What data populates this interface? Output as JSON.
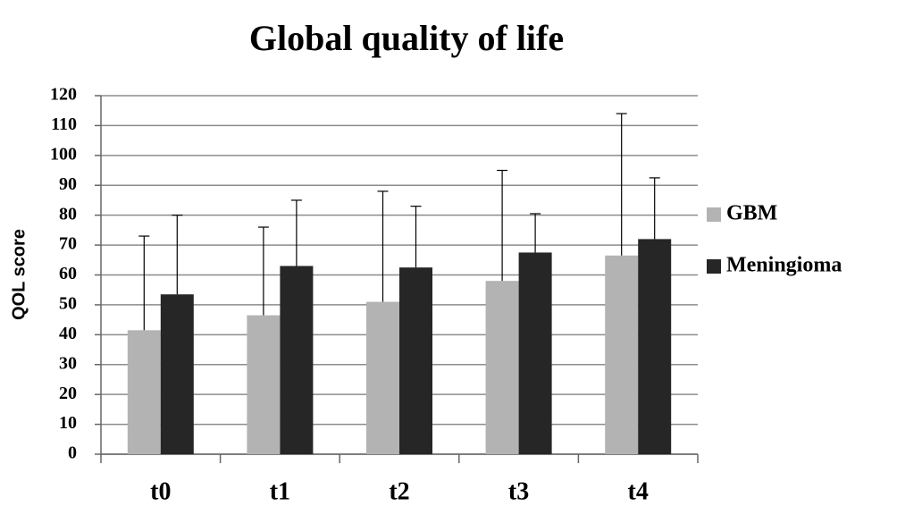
{
  "chart_data": {
    "type": "bar",
    "title": "Global quality of life",
    "ylabel": "QOL score",
    "categories": [
      "t0",
      "t1",
      "t2",
      "t3",
      "t4"
    ],
    "series": [
      {
        "name": "GBM",
        "color": "#b3b3b3",
        "values": [
          41.5,
          46.5,
          51,
          58,
          66.5
        ],
        "errors": [
          31.5,
          29.5,
          37,
          37,
          47.5
        ]
      },
      {
        "name": "Meningioma",
        "color": "#262626",
        "values": [
          53.5,
          63,
          62.5,
          67.5,
          72
        ],
        "errors": [
          26.5,
          22,
          20.5,
          13,
          20.5
        ]
      }
    ],
    "ylim": [
      0,
      120
    ],
    "yticks": [
      0,
      10,
      20,
      30,
      40,
      50,
      60,
      70,
      80,
      90,
      100,
      110,
      120
    ],
    "grid": true,
    "legend": "right"
  }
}
